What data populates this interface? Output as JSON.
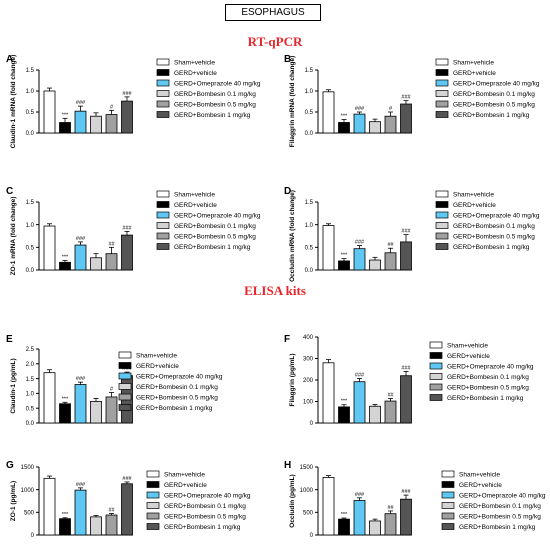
{
  "figure_title": "ESOPHAGUS",
  "section_titles": [
    "RT-qPCR",
    "ELISA kits"
  ],
  "colors": {
    "sham": "#ffffff",
    "gerd": "#000000",
    "omeprazole": "#5fc8f2",
    "bombesin_low": "#d4d4d4",
    "bombesin_mid": "#a0a0a0",
    "bombesin_high": "#555555",
    "section_title": "#e8262b"
  },
  "legend": [
    "Sham+vehicle",
    "GERD+vehicle",
    "GERD+Omeprazole 40 mg/kg",
    "GERD+Bombesin 0.1 mg/kg",
    "GERD+Bombesin 0.5 mg/kg",
    "GERD+Bombesin 1 mg/kg"
  ],
  "chart_data": [
    {
      "type": "bar",
      "panel": "A",
      "title": "",
      "xlabel": "",
      "ylabel": "Claudin-1 mRNA (fold change)",
      "ylim": [
        0,
        1.5
      ],
      "yticks": [
        "0.0",
        "0.5",
        "1.0",
        "1.5"
      ],
      "values": [
        1.0,
        0.25,
        0.52,
        0.4,
        0.44,
        0.76
      ],
      "errors": [
        0.07,
        0.1,
        0.12,
        0.08,
        0.1,
        0.1
      ],
      "annotations": [
        "",
        "***",
        "###",
        "",
        "#",
        "###"
      ]
    },
    {
      "type": "bar",
      "panel": "B",
      "title": "",
      "xlabel": "",
      "ylabel": "Filaggrin mRNA (fold change)",
      "ylim": [
        0,
        1.5
      ],
      "yticks": [
        "0.0",
        "0.5",
        "1.0",
        "1.5"
      ],
      "values": [
        0.98,
        0.25,
        0.45,
        0.27,
        0.4,
        0.69
      ],
      "errors": [
        0.05,
        0.07,
        0.05,
        0.06,
        0.1,
        0.08
      ],
      "annotations": [
        "",
        "***",
        "###",
        "",
        "#",
        "###"
      ]
    },
    {
      "type": "bar",
      "panel": "C",
      "title": "",
      "xlabel": "",
      "ylabel": "ZO-1 mRNA (fold change)",
      "ylim": [
        0,
        1.5
      ],
      "yticks": [
        "0.0",
        "0.5",
        "1.0",
        "1.5"
      ],
      "values": [
        0.97,
        0.17,
        0.55,
        0.27,
        0.36,
        0.77
      ],
      "errors": [
        0.05,
        0.04,
        0.07,
        0.09,
        0.14,
        0.08
      ],
      "annotations": [
        "",
        "***",
        "###",
        "",
        "##",
        "###"
      ]
    },
    {
      "type": "bar",
      "panel": "D",
      "title": "",
      "xlabel": "",
      "ylabel": "Occludin mRNA (fold change)",
      "ylim": [
        0,
        1.5
      ],
      "yticks": [
        "0.0",
        "0.5",
        "1.0",
        "1.5"
      ],
      "values": [
        0.98,
        0.2,
        0.47,
        0.22,
        0.38,
        0.62
      ],
      "errors": [
        0.04,
        0.05,
        0.07,
        0.06,
        0.1,
        0.16
      ],
      "annotations": [
        "",
        "***",
        "###",
        "",
        "##",
        "###"
      ]
    },
    {
      "type": "bar",
      "panel": "E",
      "title": "",
      "xlabel": "",
      "ylabel": "Claudin-1 (pg/mL)",
      "ylim": [
        0,
        2.5
      ],
      "yticks": [
        "0.0",
        "0.5",
        "1.0",
        "1.5",
        "2.0",
        "2.5"
      ],
      "values": [
        1.7,
        0.65,
        1.3,
        0.73,
        0.88,
        1.6
      ],
      "errors": [
        0.1,
        0.05,
        0.08,
        0.1,
        0.15,
        0.12
      ],
      "annotations": [
        "",
        "***",
        "###",
        "",
        "#",
        "###"
      ]
    },
    {
      "type": "bar",
      "panel": "F",
      "title": "",
      "xlabel": "",
      "ylabel": "Filaggrin (pg/mL)",
      "ylim": [
        0,
        400
      ],
      "yticks": [
        "0",
        "100",
        "200",
        "300",
        "400"
      ],
      "values": [
        280,
        75,
        192,
        78,
        102,
        220
      ],
      "errors": [
        15,
        10,
        15,
        8,
        12,
        20
      ],
      "annotations": [
        "",
        "***",
        "###",
        "",
        "##",
        "###"
      ]
    },
    {
      "type": "bar",
      "panel": "G",
      "title": "",
      "xlabel": "",
      "ylabel": "ZO-1 (pg/mL)",
      "ylim": [
        0,
        1500
      ],
      "yticks": [
        "0",
        "500",
        "1000",
        "1500"
      ],
      "values": [
        1250,
        360,
        990,
        400,
        440,
        1130
      ],
      "errors": [
        50,
        20,
        50,
        30,
        35,
        40
      ],
      "annotations": [
        "",
        "***",
        "###",
        "",
        "##",
        "###"
      ]
    },
    {
      "type": "bar",
      "panel": "H",
      "title": "",
      "xlabel": "",
      "ylabel": "Occludin (pg/mL)",
      "ylim": [
        0,
        1500
      ],
      "yticks": [
        "0",
        "500",
        "1000",
        "1500"
      ],
      "values": [
        1270,
        350,
        760,
        310,
        470,
        790
      ],
      "errors": [
        40,
        25,
        60,
        40,
        60,
        90
      ],
      "annotations": [
        "",
        "***",
        "###",
        "",
        "##",
        "###"
      ]
    }
  ]
}
